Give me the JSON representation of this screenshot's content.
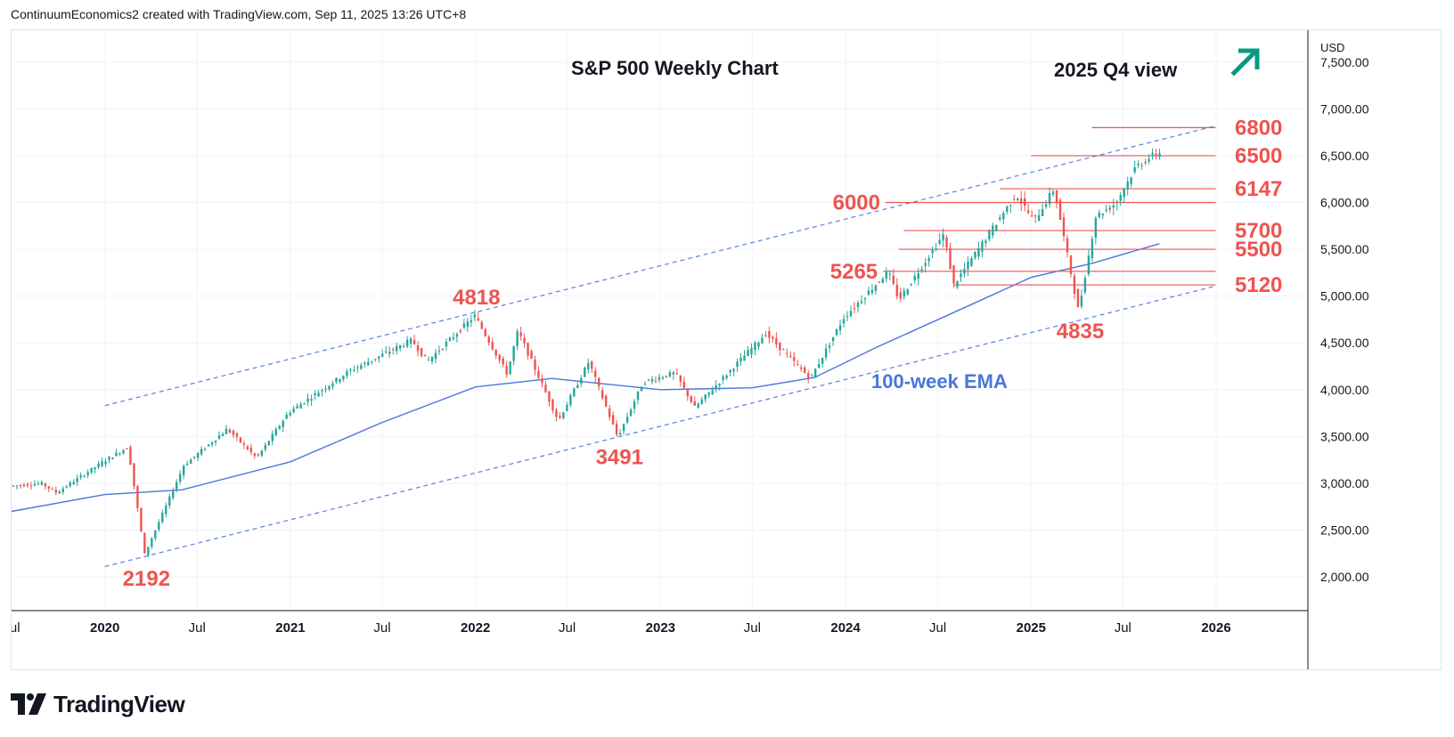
{
  "header": {
    "attribution": "ContinuumEconomics2 created with TradingView.com, Sep 11, 2025 13:26 UTC+8"
  },
  "footer": {
    "brand": "TradingView"
  },
  "colors": {
    "up": "#26a69a",
    "down": "#ef5350",
    "level": "#ef5350",
    "channel": "#5b7fe0",
    "ema": "#4a76d9",
    "arrow": "#089981",
    "grid": "#f0f3fa"
  },
  "chart_data": {
    "type": "candlestick",
    "title": "S&P 500 Weekly Chart",
    "subtitle": "2025 Q4 view",
    "outlook_icon": "arrow-up-right-icon",
    "currency": "USD",
    "y_axis": {
      "ticks": [
        "7,500.00",
        "7,000.00",
        "6,500.00",
        "6,000.00",
        "5,500.00",
        "5,000.00",
        "4,500.00",
        "4,000.00",
        "3,500.00",
        "3,000.00",
        "2,500.00",
        "2,000.00"
      ],
      "tick_values": [
        7500,
        7000,
        6500,
        6000,
        5500,
        5000,
        4500,
        4000,
        3500,
        3000,
        2500,
        2000
      ],
      "range": [
        1640,
        7840
      ]
    },
    "x_axis": {
      "ticks": [
        "Jul",
        "2020",
        "Jul",
        "2021",
        "Jul",
        "2022",
        "Jul",
        "2023",
        "Jul",
        "2024",
        "Jul",
        "2025",
        "Jul",
        "2026"
      ],
      "tick_dates": [
        "2019-07-01",
        "2020-01-01",
        "2020-07-01",
        "2021-01-01",
        "2021-07-01",
        "2022-01-01",
        "2022-07-01",
        "2023-01-01",
        "2023-07-01",
        "2024-01-01",
        "2024-07-01",
        "2025-01-01",
        "2025-07-01",
        "2026-01-01"
      ],
      "range": [
        "2019-07-01",
        "2026-07-01"
      ]
    },
    "price_path": [
      [
        "2019-07-01",
        2970
      ],
      [
        "2019-09-01",
        3000
      ],
      [
        "2019-10-01",
        2900
      ],
      [
        "2020-01-01",
        3230
      ],
      [
        "2020-02-19",
        3390
      ],
      [
        "2020-03-23",
        2240
      ],
      [
        "2020-06-08",
        3190
      ],
      [
        "2020-09-02",
        3580
      ],
      [
        "2020-10-30",
        3270
      ],
      [
        "2021-01-01",
        3760
      ],
      [
        "2021-05-01",
        4200
      ],
      [
        "2021-09-01",
        4530
      ],
      [
        "2021-10-01",
        4300
      ],
      [
        "2022-01-03",
        4790
      ],
      [
        "2022-03-08",
        4170
      ],
      [
        "2022-03-29",
        4630
      ],
      [
        "2022-06-17",
        3670
      ],
      [
        "2022-08-16",
        4300
      ],
      [
        "2022-10-12",
        3491
      ],
      [
        "2022-12-01",
        4080
      ],
      [
        "2023-02-02",
        4180
      ],
      [
        "2023-03-13",
        3810
      ],
      [
        "2023-07-31",
        4600
      ],
      [
        "2023-10-27",
        4120
      ],
      [
        "2024-01-01",
        4770
      ],
      [
        "2024-03-28",
        5260
      ],
      [
        "2024-04-19",
        4960
      ],
      [
        "2024-07-16",
        5660
      ],
      [
        "2024-08-05",
        5120
      ],
      [
        "2024-12-06",
        6090
      ],
      [
        "2025-01-10",
        5800
      ],
      [
        "2025-02-19",
        6147
      ],
      [
        "2025-04-08",
        4835
      ],
      [
        "2025-05-12",
        5850
      ],
      [
        "2025-06-20",
        5990
      ],
      [
        "2025-07-31",
        6390
      ],
      [
        "2025-09-11",
        6530
      ]
    ],
    "ema": {
      "label": "100-week EMA",
      "points": [
        [
          "2019-07-01",
          2700
        ],
        [
          "2020-01-01",
          2880
        ],
        [
          "2020-06-01",
          2930
        ],
        [
          "2021-01-01",
          3230
        ],
        [
          "2021-07-01",
          3650
        ],
        [
          "2022-01-01",
          4030
        ],
        [
          "2022-06-01",
          4120
        ],
        [
          "2023-01-01",
          4000
        ],
        [
          "2023-07-01",
          4020
        ],
        [
          "2023-11-01",
          4130
        ],
        [
          "2024-03-01",
          4450
        ],
        [
          "2024-09-01",
          4900
        ],
        [
          "2025-01-01",
          5200
        ],
        [
          "2025-05-01",
          5350
        ],
        [
          "2025-09-11",
          5560
        ]
      ]
    },
    "channel": {
      "upper": [
        [
          "2020-01-01",
          3830
        ],
        [
          "2026-01-01",
          6820
        ]
      ],
      "lower": [
        [
          "2020-01-01",
          2110
        ],
        [
          "2026-01-01",
          5110
        ]
      ]
    },
    "levels": [
      {
        "label": "6800",
        "value": 6800,
        "from": "2025-05-01",
        "to": "2025-12-31"
      },
      {
        "label": "6500",
        "value": 6500,
        "from": "2025-01-01",
        "to": "2025-12-31"
      },
      {
        "label": "6147",
        "value": 6147,
        "from": "2024-11-01",
        "to": "2025-12-31"
      },
      {
        "label": "6000",
        "value": 6000,
        "from": "2024-03-20",
        "to": "2025-12-31"
      },
      {
        "label": "5700",
        "value": 5700,
        "from": "2024-04-25",
        "to": "2025-12-31"
      },
      {
        "label": "5500",
        "value": 5500,
        "from": "2024-04-15",
        "to": "2025-12-31"
      },
      {
        "label": "5265",
        "value": 5265,
        "from": "2024-03-15",
        "to": "2025-12-31"
      },
      {
        "label": "5120",
        "value": 5120,
        "from": "2024-08-01",
        "to": "2025-12-31"
      }
    ],
    "annotations": [
      {
        "label": "2192",
        "date": "2020-03-23",
        "value": 2192,
        "pos": "below"
      },
      {
        "label": "4818",
        "date": "2022-01-03",
        "value": 4818,
        "pos": "above"
      },
      {
        "label": "3491",
        "date": "2022-10-12",
        "value": 3491,
        "pos": "below"
      },
      {
        "label": "4835",
        "date": "2025-04-08",
        "value": 4835,
        "pos": "below"
      }
    ]
  }
}
